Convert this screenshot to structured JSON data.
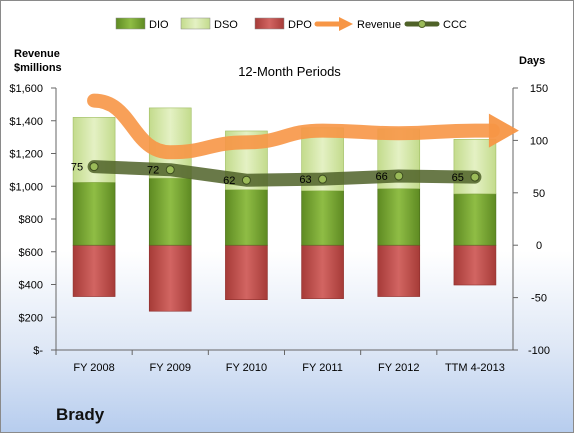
{
  "company_name": "Brady",
  "chart_data": {
    "type": "bar",
    "title": "12-Month Periods",
    "categories": [
      "FY 2008",
      "FY 2009",
      "FY 2010",
      "FY 2011",
      "FY 2012",
      "TTM 4-2013"
    ],
    "y_left": {
      "label_lines": [
        "Revenue",
        "$millions"
      ],
      "range": [
        0,
        1600
      ],
      "ticks": [
        0,
        200,
        400,
        600,
        800,
        1000,
        1200,
        1400,
        1600
      ],
      "tick_labels": [
        "$-",
        "$200",
        "$400",
        "$600",
        "$800",
        "$1,000",
        "$1,200",
        "$1,400",
        "$1,600"
      ]
    },
    "y_right": {
      "label": "Days",
      "range": [
        -100,
        150
      ],
      "ticks": [
        -100,
        -50,
        0,
        50,
        100,
        150
      ],
      "tick_labels": [
        "-100",
        "-50",
        "0",
        "50",
        "100",
        "150"
      ]
    },
    "series": [
      {
        "name": "DIO",
        "type": "bar",
        "axis": "right",
        "color": "#6f9a2b",
        "values": [
          60,
          64,
          53,
          52,
          54,
          49
        ]
      },
      {
        "name": "DSO",
        "type": "bar-stacked",
        "axis": "right",
        "color": "#d3e7a6",
        "values": [
          62,
          67,
          56,
          60,
          57,
          52
        ]
      },
      {
        "name": "DPO",
        "type": "bar-negative",
        "axis": "right",
        "color": "#c0504d",
        "values": [
          -49,
          -63,
          -52,
          -51,
          -49,
          -38
        ]
      },
      {
        "name": "Revenue",
        "type": "line-arrow",
        "axis": "left",
        "color": "#f79646",
        "values": [
          1523,
          1208,
          1268,
          1340,
          1324,
          1340
        ]
      },
      {
        "name": "CCC",
        "type": "line",
        "axis": "right",
        "color": "#4f6228",
        "values": [
          75,
          72,
          62,
          63,
          66,
          65
        ]
      }
    ],
    "data_labels": [
      "75",
      "72",
      "62",
      "63",
      "66",
      "65"
    ],
    "legend": {
      "position": "top",
      "items": [
        "DIO",
        "DSO",
        "DPO",
        "Revenue",
        "CCC"
      ]
    },
    "grid": false
  }
}
